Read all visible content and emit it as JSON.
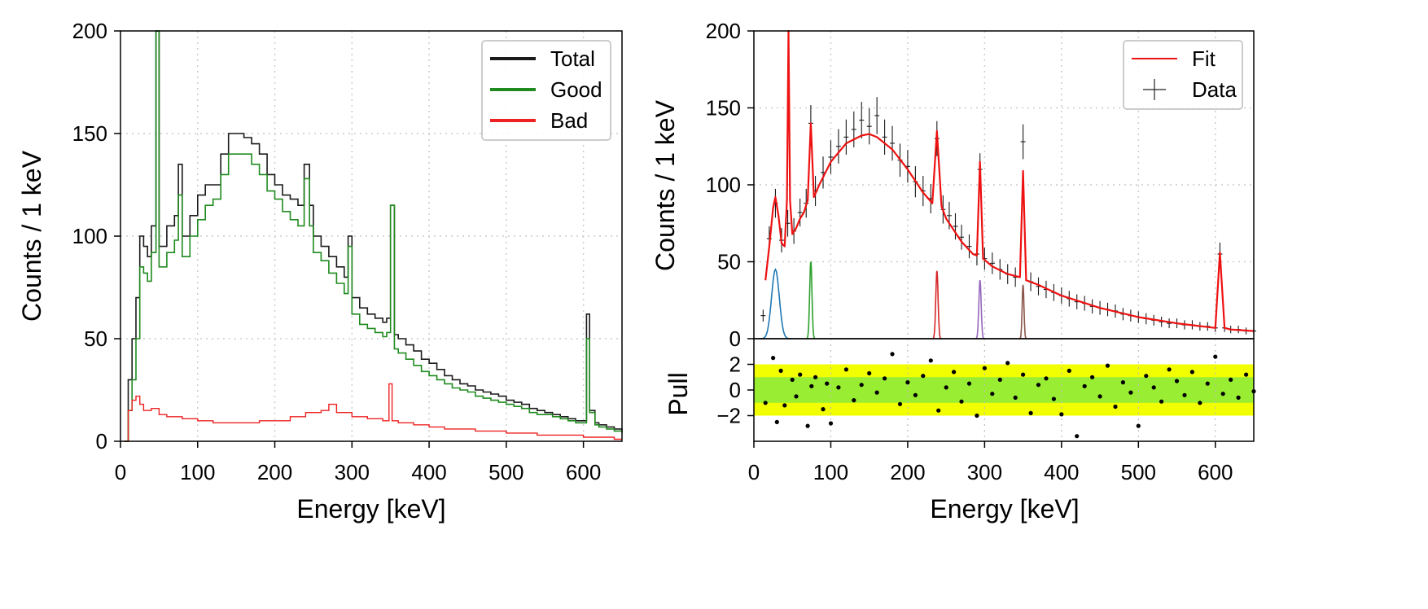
{
  "colors": {
    "total": "#1a1a1a",
    "good": "#1f8a1f",
    "bad": "#ee2222",
    "fit": "#ee1111",
    "data": "#1a1a1a",
    "band2": "#f2ff00",
    "band1": "#99ee33",
    "peak_colors": [
      "#1f77b4",
      "#2ca02c",
      "#d62728",
      "#9467bd",
      "#8c564b"
    ]
  },
  "chart_data": [
    {
      "type": "histogram",
      "xlabel": "Energy [keV]",
      "ylabel": "Counts / 1 keV",
      "xlim": [
        0,
        650
      ],
      "ylim": [
        0,
        200
      ],
      "xticks": [
        0,
        100,
        200,
        300,
        400,
        500,
        600
      ],
      "yticks": [
        0,
        50,
        100,
        150,
        200
      ],
      "grid": true,
      "legend_position": "top-right",
      "legend": [
        "Total",
        "Good",
        "Bad"
      ],
      "series": [
        {
          "name": "Total",
          "x": [
            5,
            10,
            15,
            20,
            25,
            30,
            35,
            40,
            46,
            50,
            60,
            70,
            75,
            80,
            90,
            100,
            110,
            120,
            130,
            140,
            150,
            160,
            170,
            180,
            190,
            200,
            210,
            220,
            230,
            238,
            245,
            250,
            260,
            270,
            280,
            290,
            295,
            300,
            310,
            320,
            330,
            340,
            345,
            350,
            355,
            360,
            370,
            380,
            390,
            400,
            410,
            420,
            430,
            440,
            450,
            460,
            470,
            480,
            490,
            500,
            510,
            520,
            530,
            540,
            550,
            560,
            570,
            580,
            590,
            600,
            604,
            608,
            615,
            620,
            630,
            640,
            650
          ],
          "y": [
            0,
            30,
            50,
            70,
            100,
            95,
            90,
            105,
            200,
            95,
            105,
            110,
            135,
            100,
            110,
            120,
            125,
            125,
            140,
            150,
            150,
            148,
            145,
            140,
            130,
            125,
            120,
            118,
            115,
            135,
            115,
            100,
            95,
            90,
            85,
            80,
            100,
            70,
            65,
            62,
            60,
            58,
            60,
            115,
            52,
            50,
            47,
            44,
            40,
            38,
            35,
            32,
            30,
            28,
            27,
            25,
            24,
            23,
            22,
            20,
            19,
            18,
            16,
            15,
            14,
            13,
            12,
            11,
            10,
            10,
            62,
            15,
            9,
            8,
            7,
            6,
            5
          ]
        },
        {
          "name": "Good",
          "x": [
            5,
            10,
            15,
            20,
            25,
            30,
            35,
            40,
            46,
            50,
            60,
            70,
            75,
            80,
            90,
            100,
            110,
            120,
            130,
            140,
            150,
            160,
            170,
            180,
            190,
            200,
            210,
            220,
            230,
            238,
            245,
            250,
            260,
            270,
            280,
            290,
            295,
            300,
            310,
            320,
            330,
            340,
            345,
            350,
            355,
            360,
            370,
            380,
            390,
            400,
            410,
            420,
            430,
            440,
            450,
            460,
            470,
            480,
            490,
            500,
            510,
            520,
            530,
            540,
            550,
            560,
            570,
            580,
            590,
            600,
            604,
            608,
            615,
            620,
            630,
            640,
            650
          ],
          "y": [
            0,
            15,
            30,
            50,
            85,
            82,
            78,
            92,
            200,
            85,
            92,
            98,
            120,
            90,
            100,
            108,
            115,
            118,
            130,
            140,
            140,
            140,
            135,
            130,
            122,
            118,
            112,
            108,
            105,
            128,
            105,
            92,
            88,
            82,
            77,
            72,
            95,
            62,
            57,
            55,
            53,
            51,
            53,
            115,
            45,
            43,
            40,
            37,
            34,
            32,
            30,
            28,
            26,
            25,
            24,
            22,
            21,
            20,
            19,
            18,
            17,
            16,
            14,
            13,
            13,
            12,
            11,
            10,
            9,
            9,
            50,
            14,
            8,
            7,
            6,
            5,
            4
          ]
        },
        {
          "name": "Bad",
          "x": [
            5,
            10,
            15,
            20,
            25,
            30,
            40,
            50,
            60,
            80,
            100,
            120,
            140,
            160,
            180,
            200,
            220,
            240,
            260,
            270,
            280,
            290,
            300,
            320,
            340,
            348,
            352,
            360,
            380,
            400,
            420,
            440,
            460,
            480,
            500,
            520,
            540,
            560,
            580,
            600,
            620,
            640,
            650
          ],
          "y": [
            0,
            15,
            20,
            22,
            18,
            15,
            16,
            13,
            12,
            11,
            10,
            9,
            9,
            9,
            10,
            10,
            12,
            14,
            15,
            18,
            14,
            14,
            12,
            11,
            10,
            28,
            10,
            9,
            8,
            7,
            6,
            6,
            5,
            5,
            4,
            4,
            3,
            3,
            3,
            2,
            2,
            1,
            1
          ]
        }
      ]
    },
    {
      "type": "scatter",
      "xlabel": "Energy [keV]",
      "ylabel": "Counts / 1 keV",
      "xlim": [
        0,
        650
      ],
      "ylim": [
        0,
        200
      ],
      "xticks": [
        0,
        100,
        200,
        300,
        400,
        500,
        600
      ],
      "yticks": [
        0,
        50,
        100,
        150,
        200
      ],
      "grid": true,
      "legend_position": "top-right",
      "legend": [
        "Fit",
        "Data"
      ],
      "fit": {
        "name": "Fit",
        "x": [
          15,
          20,
          25,
          28,
          32,
          36,
          40,
          43,
          45,
          47,
          50,
          55,
          60,
          65,
          70,
          74,
          78,
          85,
          100,
          120,
          140,
          150,
          160,
          180,
          200,
          220,
          232,
          238,
          244,
          250,
          270,
          285,
          290,
          294,
          298,
          310,
          330,
          346,
          350,
          354,
          370,
          400,
          450,
          500,
          550,
          600,
          606,
          612,
          620,
          650
        ],
        "y": [
          38,
          60,
          85,
          92,
          80,
          62,
          60,
          90,
          200,
          90,
          68,
          72,
          78,
          82,
          90,
          140,
          92,
          100,
          115,
          127,
          132,
          133,
          131,
          123,
          110,
          95,
          88,
          135,
          86,
          78,
          63,
          55,
          54,
          115,
          52,
          47,
          42,
          40,
          109,
          38,
          35,
          28,
          20,
          14,
          10,
          7,
          56,
          7,
          6,
          5
        ]
      },
      "data": {
        "name": "Data",
        "x": [
          12,
          20,
          28,
          36,
          44,
          52,
          60,
          68,
          74,
          80,
          90,
          100,
          110,
          120,
          130,
          140,
          150,
          160,
          170,
          180,
          190,
          200,
          210,
          220,
          230,
          238,
          246,
          254,
          262,
          270,
          280,
          290,
          294,
          300,
          310,
          320,
          330,
          340,
          350,
          360,
          370,
          380,
          390,
          400,
          410,
          420,
          430,
          440,
          450,
          460,
          470,
          480,
          490,
          500,
          510,
          520,
          530,
          540,
          550,
          560,
          570,
          580,
          590,
          600,
          606,
          612,
          620,
          630,
          640,
          650
        ],
        "y": [
          15,
          65,
          88,
          64,
          75,
          70,
          82,
          88,
          140,
          96,
          108,
          118,
          125,
          131,
          136,
          142,
          138,
          145,
          131,
          127,
          116,
          112,
          102,
          96,
          91,
          130,
          84,
          80,
          73,
          66,
          60,
          55,
          110,
          52,
          49,
          45,
          42,
          40,
          128,
          37,
          34,
          32,
          30,
          28,
          26,
          24,
          23,
          21,
          20,
          19,
          18,
          16,
          15,
          14,
          13,
          12,
          11,
          10,
          10,
          9,
          9,
          8,
          8,
          7,
          55,
          7,
          6,
          6,
          5,
          5
        ]
      },
      "peaks": [
        {
          "center": 28,
          "amplitude": 45,
          "sigma": 5
        },
        {
          "center": 74,
          "amplitude": 50,
          "sigma": 1.5
        },
        {
          "center": 238,
          "amplitude": 44,
          "sigma": 1.5
        },
        {
          "center": 294,
          "amplitude": 38,
          "sigma": 1.5
        },
        {
          "center": 350,
          "amplitude": 35,
          "sigma": 1.2
        }
      ]
    },
    {
      "type": "scatter",
      "ylabel": "Pull",
      "xlim": [
        0,
        650
      ],
      "ylim": [
        -4,
        4
      ],
      "xticks": [
        0,
        100,
        200,
        300,
        400,
        500,
        600
      ],
      "yticks": [
        -2,
        0,
        2
      ],
      "bands": [
        {
          "range": [
            -2,
            2
          ],
          "color": "#f2ff00"
        },
        {
          "range": [
            -1,
            1
          ],
          "color": "#99ee33"
        }
      ],
      "x": [
        15,
        25,
        30,
        35,
        40,
        50,
        55,
        60,
        70,
        75,
        80,
        90,
        95,
        100,
        110,
        120,
        130,
        140,
        150,
        160,
        170,
        180,
        190,
        200,
        210,
        220,
        230,
        240,
        250,
        260,
        270,
        280,
        290,
        300,
        310,
        320,
        330,
        340,
        350,
        360,
        370,
        380,
        390,
        400,
        410,
        420,
        430,
        440,
        450,
        460,
        470,
        480,
        490,
        500,
        510,
        520,
        530,
        540,
        550,
        560,
        570,
        580,
        590,
        600,
        610,
        620,
        630,
        640,
        650
      ],
      "y": [
        -1.0,
        2.5,
        -2.5,
        1.5,
        -1.2,
        0.8,
        -0.5,
        1.2,
        -2.8,
        0.3,
        1.0,
        -1.5,
        0.5,
        -2.6,
        0.2,
        1.6,
        -0.8,
        0.4,
        1.3,
        -0.2,
        0.9,
        2.8,
        -1.1,
        0.6,
        -0.4,
        1.1,
        2.3,
        -1.6,
        0.2,
        1.4,
        -0.9,
        0.5,
        -2.0,
        1.7,
        -0.3,
        0.8,
        2.1,
        -0.6,
        1.2,
        -1.8,
        0.4,
        0.9,
        -0.7,
        -1.9,
        1.5,
        -3.6,
        0.3,
        1.0,
        -0.5,
        1.9,
        -1.3,
        0.6,
        -0.2,
        -2.8,
        1.1,
        0.2,
        -0.9,
        1.6,
        0.7,
        -0.4,
        1.4,
        -1.0,
        0.5,
        2.6,
        -0.3,
        0.8,
        -0.6,
        1.2,
        -0.1
      ]
    }
  ]
}
